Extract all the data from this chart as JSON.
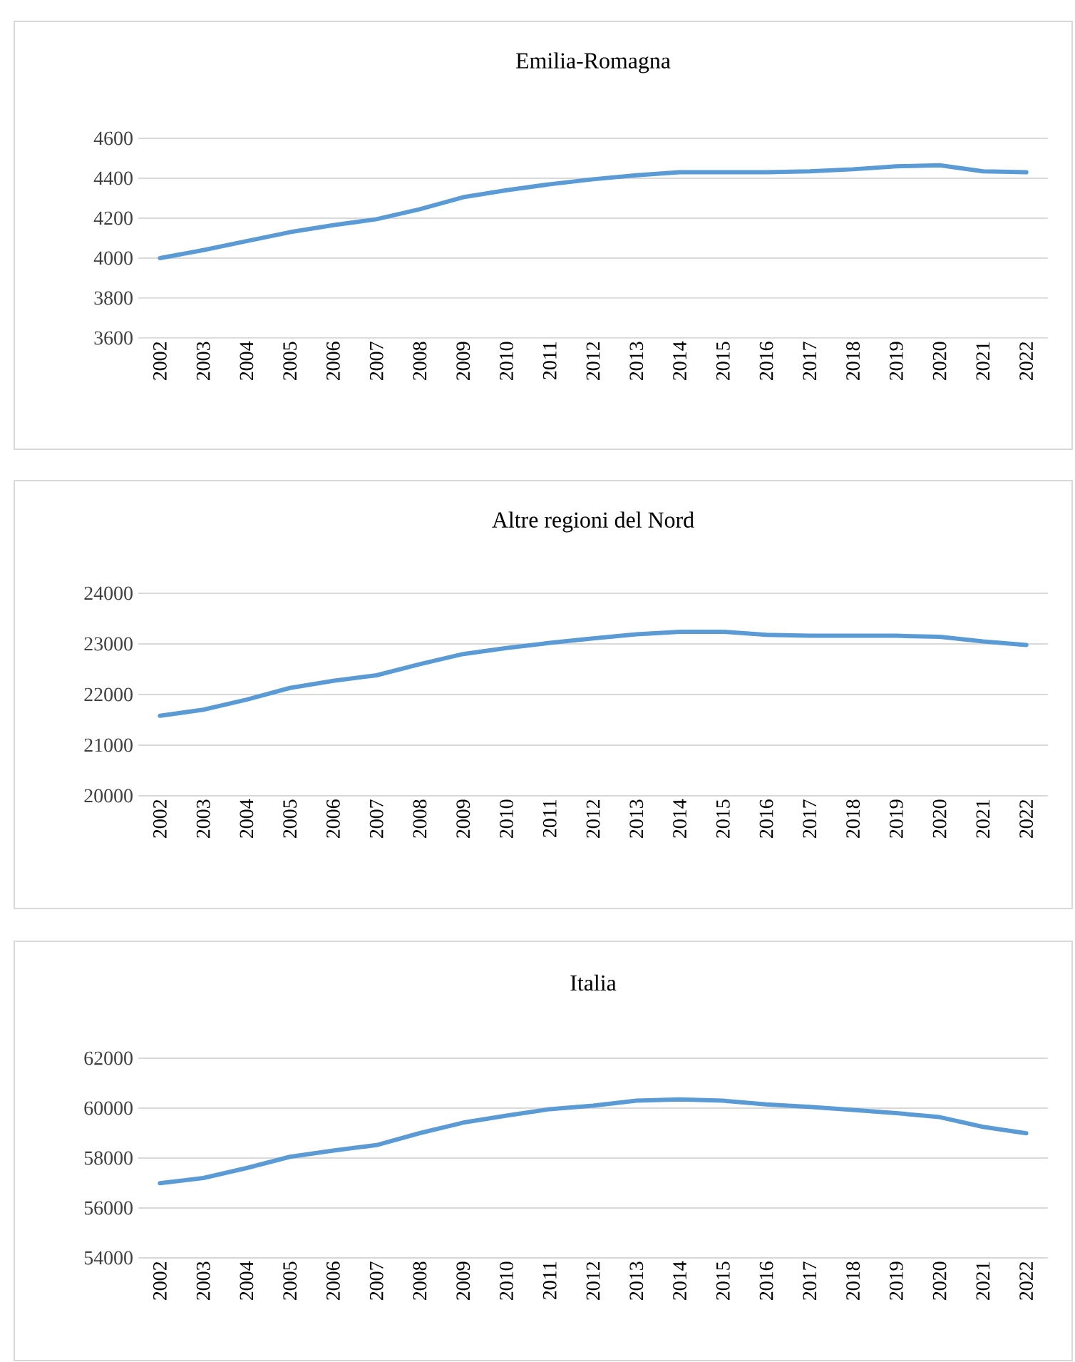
{
  "chart_data": [
    {
      "type": "line",
      "title": "Emilia-Romagna",
      "categories": [
        "2002",
        "2003",
        "2004",
        "2005",
        "2006",
        "2007",
        "2008",
        "2009",
        "2010",
        "2011",
        "2012",
        "2013",
        "2014",
        "2015",
        "2016",
        "2017",
        "2018",
        "2019",
        "2020",
        "2021",
        "2022"
      ],
      "series": [
        {
          "color": "#5b9bd5",
          "values": [
            4000,
            4040,
            4085,
            4130,
            4165,
            4195,
            4245,
            4305,
            4340,
            4370,
            4395,
            4415,
            4430,
            4430,
            4430,
            4435,
            4445,
            4460,
            4465,
            4435,
            4430
          ]
        }
      ],
      "ylim": [
        3600,
        4600
      ],
      "yticks": [
        3600,
        3800,
        4000,
        4200,
        4400,
        4600
      ],
      "grid": "y"
    },
    {
      "type": "line",
      "title": "Altre regioni del Nord",
      "categories": [
        "2002",
        "2003",
        "2004",
        "2005",
        "2006",
        "2007",
        "2008",
        "2009",
        "2010",
        "2011",
        "2012",
        "2013",
        "2014",
        "2015",
        "2016",
        "2017",
        "2018",
        "2019",
        "2020",
        "2021",
        "2022"
      ],
      "series": [
        {
          "color": "#5b9bd5",
          "values": [
            21580,
            21700,
            21900,
            22130,
            22270,
            22380,
            22600,
            22800,
            22920,
            23020,
            23110,
            23190,
            23240,
            23240,
            23180,
            23160,
            23160,
            23160,
            23140,
            23050,
            22980
          ]
        }
      ],
      "ylim": [
        20000,
        24000
      ],
      "yticks": [
        20000,
        21000,
        22000,
        23000,
        24000
      ],
      "grid": "y"
    },
    {
      "type": "line",
      "title": "Italia",
      "categories": [
        "2002",
        "2003",
        "2004",
        "2005",
        "2006",
        "2007",
        "2008",
        "2009",
        "2010",
        "2011",
        "2012",
        "2013",
        "2014",
        "2015",
        "2016",
        "2017",
        "2018",
        "2019",
        "2020",
        "2021",
        "2022"
      ],
      "series": [
        {
          "color": "#5b9bd5",
          "values": [
            56990,
            57200,
            57600,
            58050,
            58300,
            58520,
            59000,
            59420,
            59700,
            59960,
            60100,
            60300,
            60350,
            60300,
            60150,
            60050,
            59930,
            59800,
            59640,
            59250,
            58990
          ]
        }
      ],
      "ylim": [
        54000,
        62000
      ],
      "yticks": [
        54000,
        56000,
        58000,
        60000,
        62000
      ],
      "grid": "y"
    }
  ]
}
